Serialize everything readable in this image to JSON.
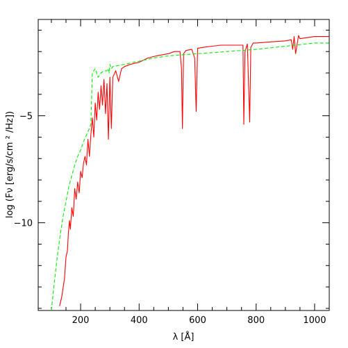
{
  "chart_data": {
    "type": "line",
    "title": "",
    "xlabel": "λ [Å]",
    "ylabel": "log (Fν [erg/s/cm ² /Hz])",
    "xlim": [
      55,
      1050
    ],
    "ylim": [
      -14.1,
      -0.5
    ],
    "x_ticks": [
      200,
      400,
      600,
      800,
      1000
    ],
    "y_ticks": [
      -5,
      -10
    ],
    "grid": false,
    "legend": "none",
    "series": [
      {
        "color": "#ff0000",
        "style": "solid",
        "x": [
          128,
          135,
          145,
          150,
          155,
          158,
          162,
          165,
          170,
          175,
          180,
          185,
          190,
          195,
          200,
          205,
          210,
          215,
          220,
          225,
          230,
          235,
          240,
          245,
          250,
          255,
          260,
          265,
          270,
          275,
          280,
          285,
          290,
          295,
          300,
          305,
          310,
          320,
          330,
          340,
          350,
          370,
          400,
          430,
          460,
          480,
          500,
          510,
          520,
          540,
          545,
          548,
          552,
          560,
          580,
          590,
          595,
          600,
          620,
          650,
          680,
          700,
          740,
          755,
          758,
          762,
          770,
          778,
          782,
          790,
          800,
          850,
          900,
          920,
          925,
          930,
          935,
          945,
          950,
          1000,
          1050
        ],
        "y": [
          -13.9,
          -13.5,
          -12.6,
          -11.6,
          -11.3,
          -10.5,
          -9.9,
          -10.3,
          -9.3,
          -9.7,
          -8.4,
          -8.9,
          -8.1,
          -8.6,
          -7.6,
          -7.9,
          -7.2,
          -6.9,
          -7.3,
          -6.1,
          -6.9,
          -5.9,
          -5.1,
          -6.0,
          -4.4,
          -5.2,
          -3.9,
          -4.7,
          -3.6,
          -4.5,
          -3.3,
          -4.9,
          -3.5,
          -6.1,
          -3.2,
          -5.6,
          -3.2,
          -2.9,
          -3.4,
          -2.8,
          -2.7,
          -2.6,
          -2.5,
          -2.3,
          -2.2,
          -2.15,
          -2.1,
          -2.05,
          -2.0,
          -2.0,
          -2.8,
          -5.6,
          -2.1,
          -1.95,
          -1.9,
          -2.3,
          -4.8,
          -1.85,
          -1.8,
          -1.75,
          -1.7,
          -1.7,
          -1.7,
          -1.7,
          -5.4,
          -2.0,
          -1.65,
          -5.3,
          -1.8,
          -1.6,
          -1.6,
          -1.55,
          -1.5,
          -1.45,
          -1.9,
          -1.3,
          -2.1,
          -1.25,
          -1.4,
          -1.3,
          -1.3
        ]
      },
      {
        "color": "#00ee00",
        "style": "dashed",
        "x": [
          100,
          110,
          120,
          130,
          140,
          150,
          160,
          170,
          180,
          190,
          200,
          210,
          220,
          230,
          235,
          240,
          250,
          260,
          270,
          280,
          290,
          295,
          298,
          300,
          305,
          310,
          350,
          400,
          450,
          500,
          550,
          600,
          650,
          700,
          800,
          900,
          1000,
          1050
        ],
        "y": [
          -14.1,
          -12.8,
          -11.6,
          -10.6,
          -9.7,
          -9.0,
          -8.3,
          -7.8,
          -7.3,
          -6.9,
          -6.6,
          -6.2,
          -5.9,
          -5.6,
          -5.4,
          -3.0,
          -2.8,
          -3.2,
          -3.0,
          -2.9,
          -2.9,
          -2.8,
          -3.0,
          -2.6,
          -2.8,
          -2.7,
          -2.6,
          -2.45,
          -2.3,
          -2.2,
          -2.15,
          -2.1,
          -2.05,
          -2.0,
          -1.9,
          -1.75,
          -1.6,
          -1.6
        ]
      }
    ]
  }
}
